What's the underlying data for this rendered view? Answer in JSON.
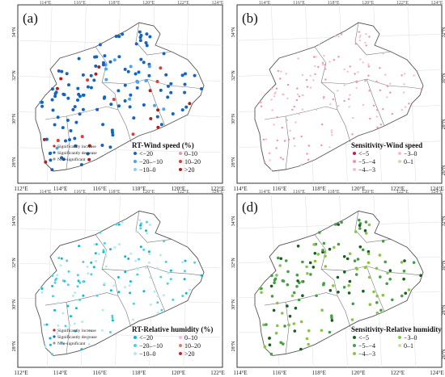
{
  "panels": [
    {
      "id": "a",
      "panel_label": "(a)",
      "lat_ticks": [
        "34°N",
        "32°N",
        "30°N",
        "28°N"
      ],
      "lon_ticks": [
        "112°E",
        "114°E",
        "116°E",
        "118°E",
        "120°E",
        "122°E"
      ],
      "top_lon_ticks": [
        "114°E",
        "116°E",
        "118°E",
        "120°E",
        "122°E",
        "124°E"
      ],
      "legend": {
        "title": "RT-Wind speed (%)",
        "sig_items": [
          "Significantly increase",
          "Significantly decrease",
          "Non-significant"
        ],
        "items": [
          "<−20",
          "0–10",
          "−20–−10",
          "10–20",
          "−10–0",
          ">20"
        ]
      },
      "colors": [
        "#1565c0",
        "#42a5f5",
        "#90caf9",
        "#f48fb1",
        "#e53935",
        "#b71c1c"
      ]
    },
    {
      "id": "b",
      "panel_label": "(b)",
      "lat_ticks": [
        "32°N",
        "30°N",
        "28°N",
        "26°N"
      ],
      "lat_ticks_left": [
        "34°N",
        "32°N",
        "30°N",
        "28°N"
      ],
      "lon_ticks": [
        "114°E",
        "116°E",
        "118°E",
        "120°E",
        "122°E",
        "124°E"
      ],
      "top_lon_ticks": [
        "114°E",
        "116°E",
        "118°E",
        "120°E",
        "122°E",
        "124°E"
      ],
      "legend": {
        "title": "Sensitivity-Wind speed",
        "items": [
          "<−5",
          "−3–0",
          "−5–−4",
          "0–1",
          "−4–−3"
        ]
      },
      "colors": [
        "#c2185b",
        "#f48fb1",
        "#f8bbd0"
      ]
    },
    {
      "id": "c",
      "panel_label": "(c)",
      "lat_ticks": [
        "34°N",
        "32°N",
        "30°N",
        "28°N"
      ],
      "lon_ticks": [
        "112°E",
        "114°E",
        "116°E",
        "118°E",
        "120°E",
        "122°E"
      ],
      "top_lon_ticks": [
        "114°E",
        "116°E",
        "118°E",
        "120°E",
        "122°E",
        "124°E"
      ],
      "legend": {
        "title": "RT-Relative humidity (%)",
        "sig_items": [
          "Significantly increase",
          "Significantly decrease",
          "Non-significant"
        ],
        "items": [
          "<−20",
          "0–10",
          "−20–−10",
          "10–20",
          "−10–0",
          ">20"
        ]
      },
      "colors": [
        "#00bcd4",
        "#4dd0e1",
        "#b2ebf2"
      ]
    },
    {
      "id": "d",
      "panel_label": "(d)",
      "lat_ticks": [
        "32°N",
        "30°N",
        "28°N",
        "26°N"
      ],
      "lat_ticks_left": [
        "34°N",
        "32°N",
        "30°N",
        "28°N"
      ],
      "lon_ticks": [
        "114°E",
        "116°E",
        "118°E",
        "120°E",
        "122°E",
        "124°E"
      ],
      "top_lon_ticks": [
        "114°E",
        "116°E",
        "118°E",
        "120°E",
        "122°E",
        "124°E"
      ],
      "legend": {
        "title": "Sensitivity-Relative humidity",
        "items": [
          "<−5",
          "−3–0",
          "−5–−4",
          "0–1",
          "−4–−3"
        ]
      },
      "colors": [
        "#1b5e20",
        "#43a047",
        "#8bc34a"
      ]
    }
  ]
}
